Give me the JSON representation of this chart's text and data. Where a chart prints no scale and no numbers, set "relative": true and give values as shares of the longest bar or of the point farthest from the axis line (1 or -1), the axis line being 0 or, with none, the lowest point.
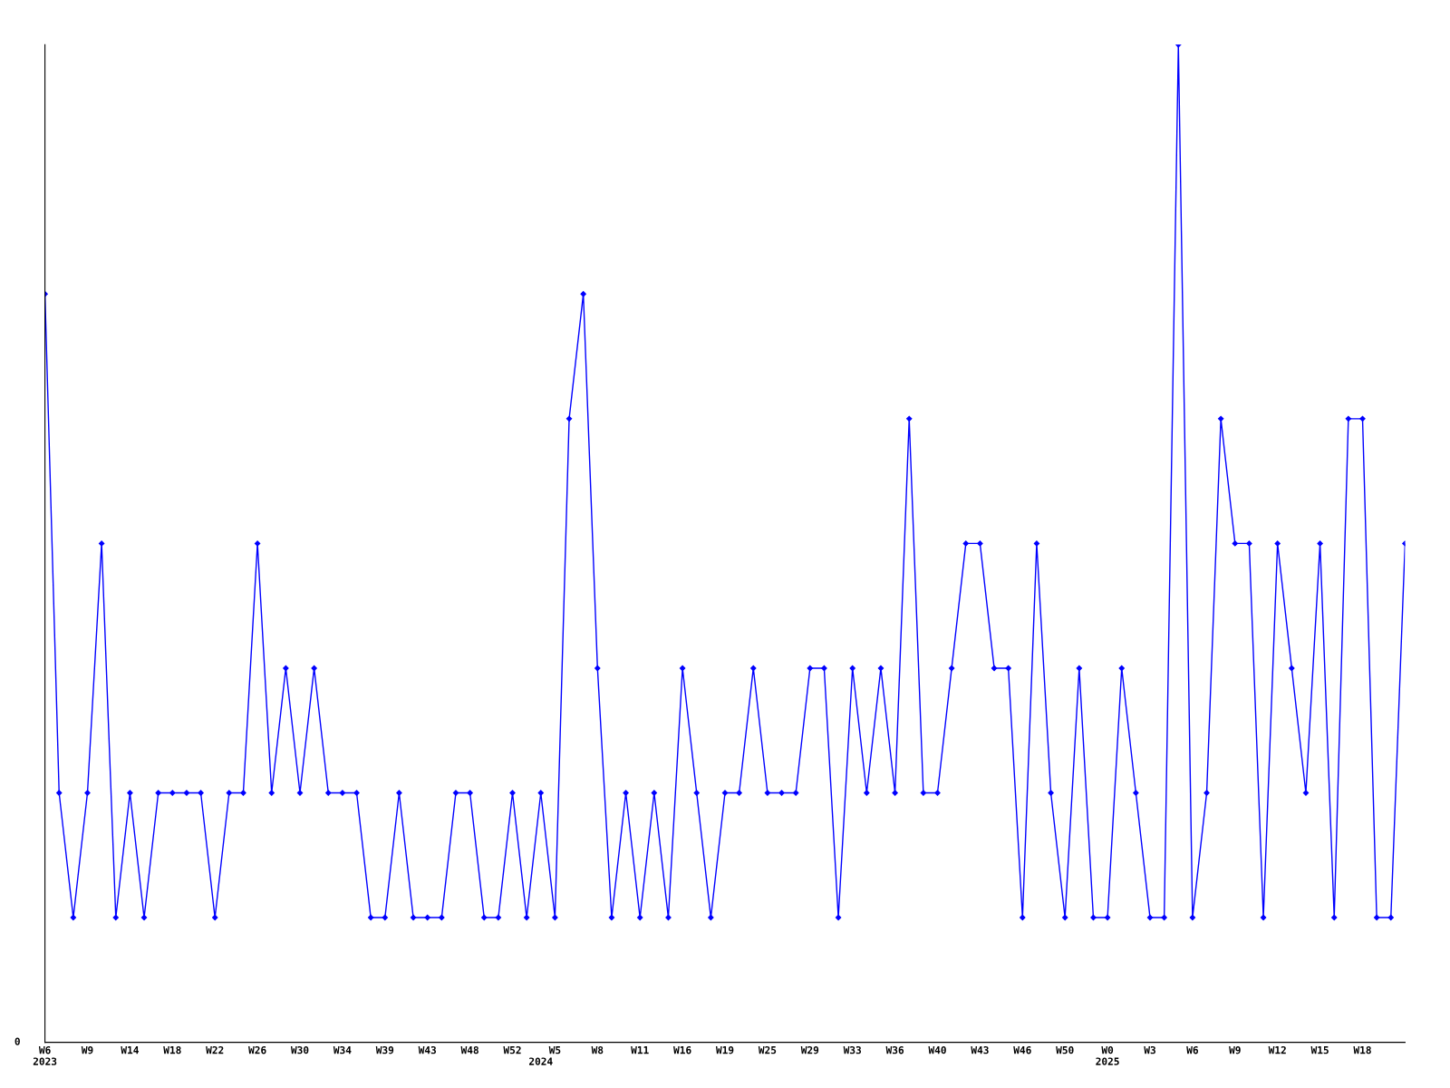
{
  "chart_data": {
    "type": "line",
    "relative": true,
    "marker": "diamond",
    "line_style": "solid",
    "grid": false,
    "legend": false,
    "categories": [
      "W6\n2023",
      null,
      null,
      "W9",
      null,
      null,
      "W14",
      null,
      null,
      "W18",
      null,
      null,
      "W22",
      null,
      null,
      "W26",
      null,
      null,
      "W30",
      null,
      null,
      "W34",
      null,
      null,
      "W39",
      null,
      null,
      "W43",
      null,
      null,
      "W48",
      null,
      null,
      "W52",
      null,
      "\n2024",
      "W5",
      null,
      null,
      "W8",
      null,
      null,
      "W11",
      null,
      null,
      "W16",
      null,
      null,
      "W19",
      null,
      null,
      "W25",
      null,
      null,
      "W29",
      null,
      null,
      "W33",
      null,
      null,
      "W36",
      null,
      null,
      "W40",
      null,
      null,
      "W43",
      null,
      null,
      "W46",
      null,
      null,
      "W50",
      null,
      null,
      "W0\n2025",
      null,
      null,
      "W3",
      null,
      null,
      "W6",
      null,
      null,
      "W9",
      null,
      null,
      "W12",
      null,
      null,
      "W15",
      null,
      null,
      "W18",
      null,
      null,
      null
    ],
    "series": [
      {
        "color": "#0000ff",
        "values": [
          0.75,
          0.25,
          0.125,
          0.25,
          0.5,
          0.125,
          0.25,
          0.125,
          0.25,
          0.25,
          0.25,
          0.25,
          0.125,
          0.25,
          0.25,
          0.5,
          0.25,
          0.375,
          0.25,
          0.375,
          0.25,
          0.25,
          0.25,
          0.125,
          0.125,
          0.25,
          0.125,
          0.125,
          0.125,
          0.25,
          0.25,
          0.125,
          0.125,
          0.25,
          0.125,
          0.25,
          0.125,
          0.625,
          0.75,
          0.375,
          0.125,
          0.25,
          0.125,
          0.25,
          0.125,
          0.375,
          0.25,
          0.125,
          0.25,
          0.25,
          0.375,
          0.25,
          0.25,
          0.25,
          0.375,
          0.375,
          0.125,
          0.375,
          0.25,
          0.375,
          0.25,
          0.625,
          0.25,
          0.25,
          0.375,
          0.5,
          0.5,
          0.375,
          0.375,
          0.125,
          0.5,
          0.25,
          0.125,
          0.375,
          0.125,
          0.125,
          0.375,
          0.25,
          0.125,
          0.125,
          1,
          0.125,
          0.25,
          0.625,
          0.5,
          0.5,
          0.125,
          0.5,
          0.375,
          0.25,
          0.5,
          0.125,
          0.625,
          0.625,
          0.125,
          0.125,
          0.5
        ]
      }
    ],
    "annotations": [
      "0"
    ]
  }
}
